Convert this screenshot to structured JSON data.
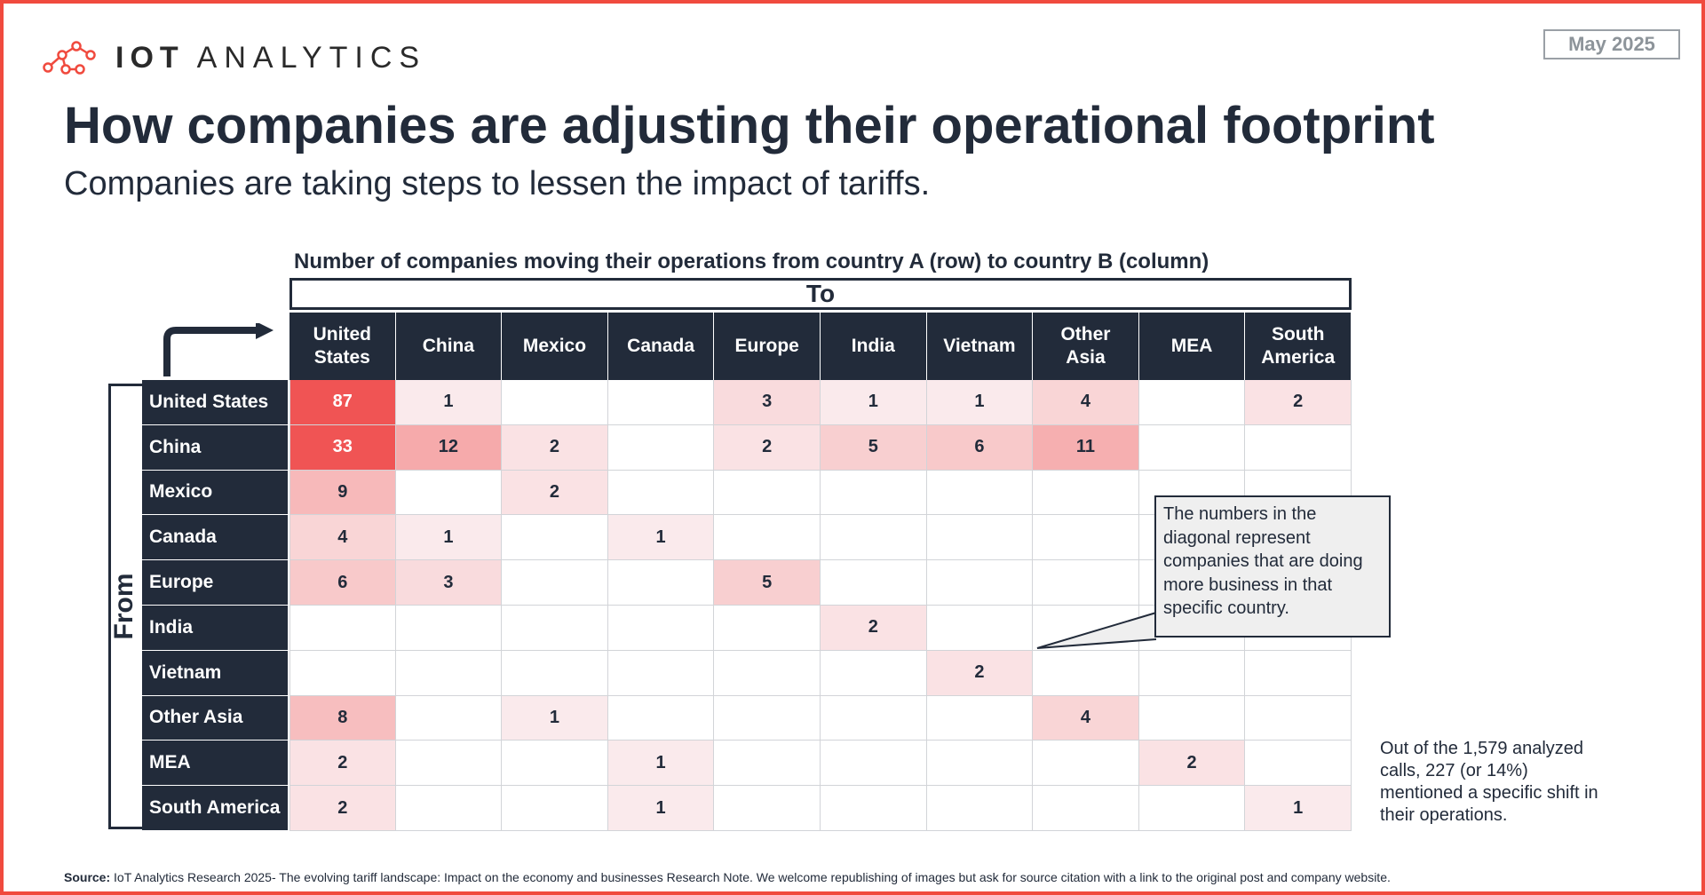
{
  "brand": {
    "logo_bold": "IOT",
    "logo_light": "ANALYTICS"
  },
  "date_badge": "May 2025",
  "title": "How companies are adjusting their operational footprint",
  "subtitle": "Companies are taking steps to lessen the impact of tariffs.",
  "chart_data": {
    "type": "heatmap",
    "title": "Number of companies moving their operations from country A (row) to country B (column)",
    "column_axis_label": "To",
    "row_axis_label": "From",
    "columns": [
      "United States",
      "China",
      "Mexico",
      "Canada",
      "Europe",
      "India",
      "Vietnam",
      "Other Asia",
      "MEA",
      "South America"
    ],
    "rows": [
      "United States",
      "China",
      "Mexico",
      "Canada",
      "Europe",
      "India",
      "Vietnam",
      "Other Asia",
      "MEA",
      "South America"
    ],
    "values": [
      [
        87,
        1,
        null,
        null,
        3,
        1,
        1,
        4,
        null,
        2
      ],
      [
        33,
        12,
        2,
        null,
        2,
        5,
        6,
        11,
        null,
        null
      ],
      [
        9,
        null,
        2,
        null,
        null,
        null,
        null,
        null,
        null,
        null
      ],
      [
        4,
        1,
        null,
        1,
        null,
        null,
        null,
        null,
        null,
        null
      ],
      [
        6,
        3,
        null,
        null,
        5,
        null,
        null,
        null,
        null,
        null
      ],
      [
        null,
        null,
        null,
        null,
        null,
        2,
        null,
        null,
        null,
        null
      ],
      [
        null,
        null,
        null,
        null,
        null,
        null,
        2,
        null,
        null,
        null
      ],
      [
        8,
        null,
        1,
        null,
        null,
        null,
        null,
        4,
        null,
        null
      ],
      [
        2,
        null,
        null,
        1,
        null,
        null,
        null,
        null,
        2,
        null
      ],
      [
        2,
        null,
        null,
        1,
        null,
        null,
        null,
        null,
        null,
        1
      ]
    ],
    "colors": {
      "header_bg": "#222b3a",
      "high": "#f05454",
      "low": "#fbf6f8",
      "grid": "#d2d4d8"
    }
  },
  "callout": "The numbers in the diagonal represent companies that are doing more business in that specific country.",
  "note": "Out of the 1,579 analyzed calls, 227 (or 14%) mentioned a specific shift in their operations.",
  "source": {
    "label": "Source:",
    "text": "IoT Analytics Research 2025- The evolving tariff landscape: Impact on the economy and businesses Research Note. We welcome republishing of images but ask for source citation with a link to the original post and company website."
  },
  "colors": {
    "accent": "#f04a3e",
    "navy": "#222b3a"
  }
}
